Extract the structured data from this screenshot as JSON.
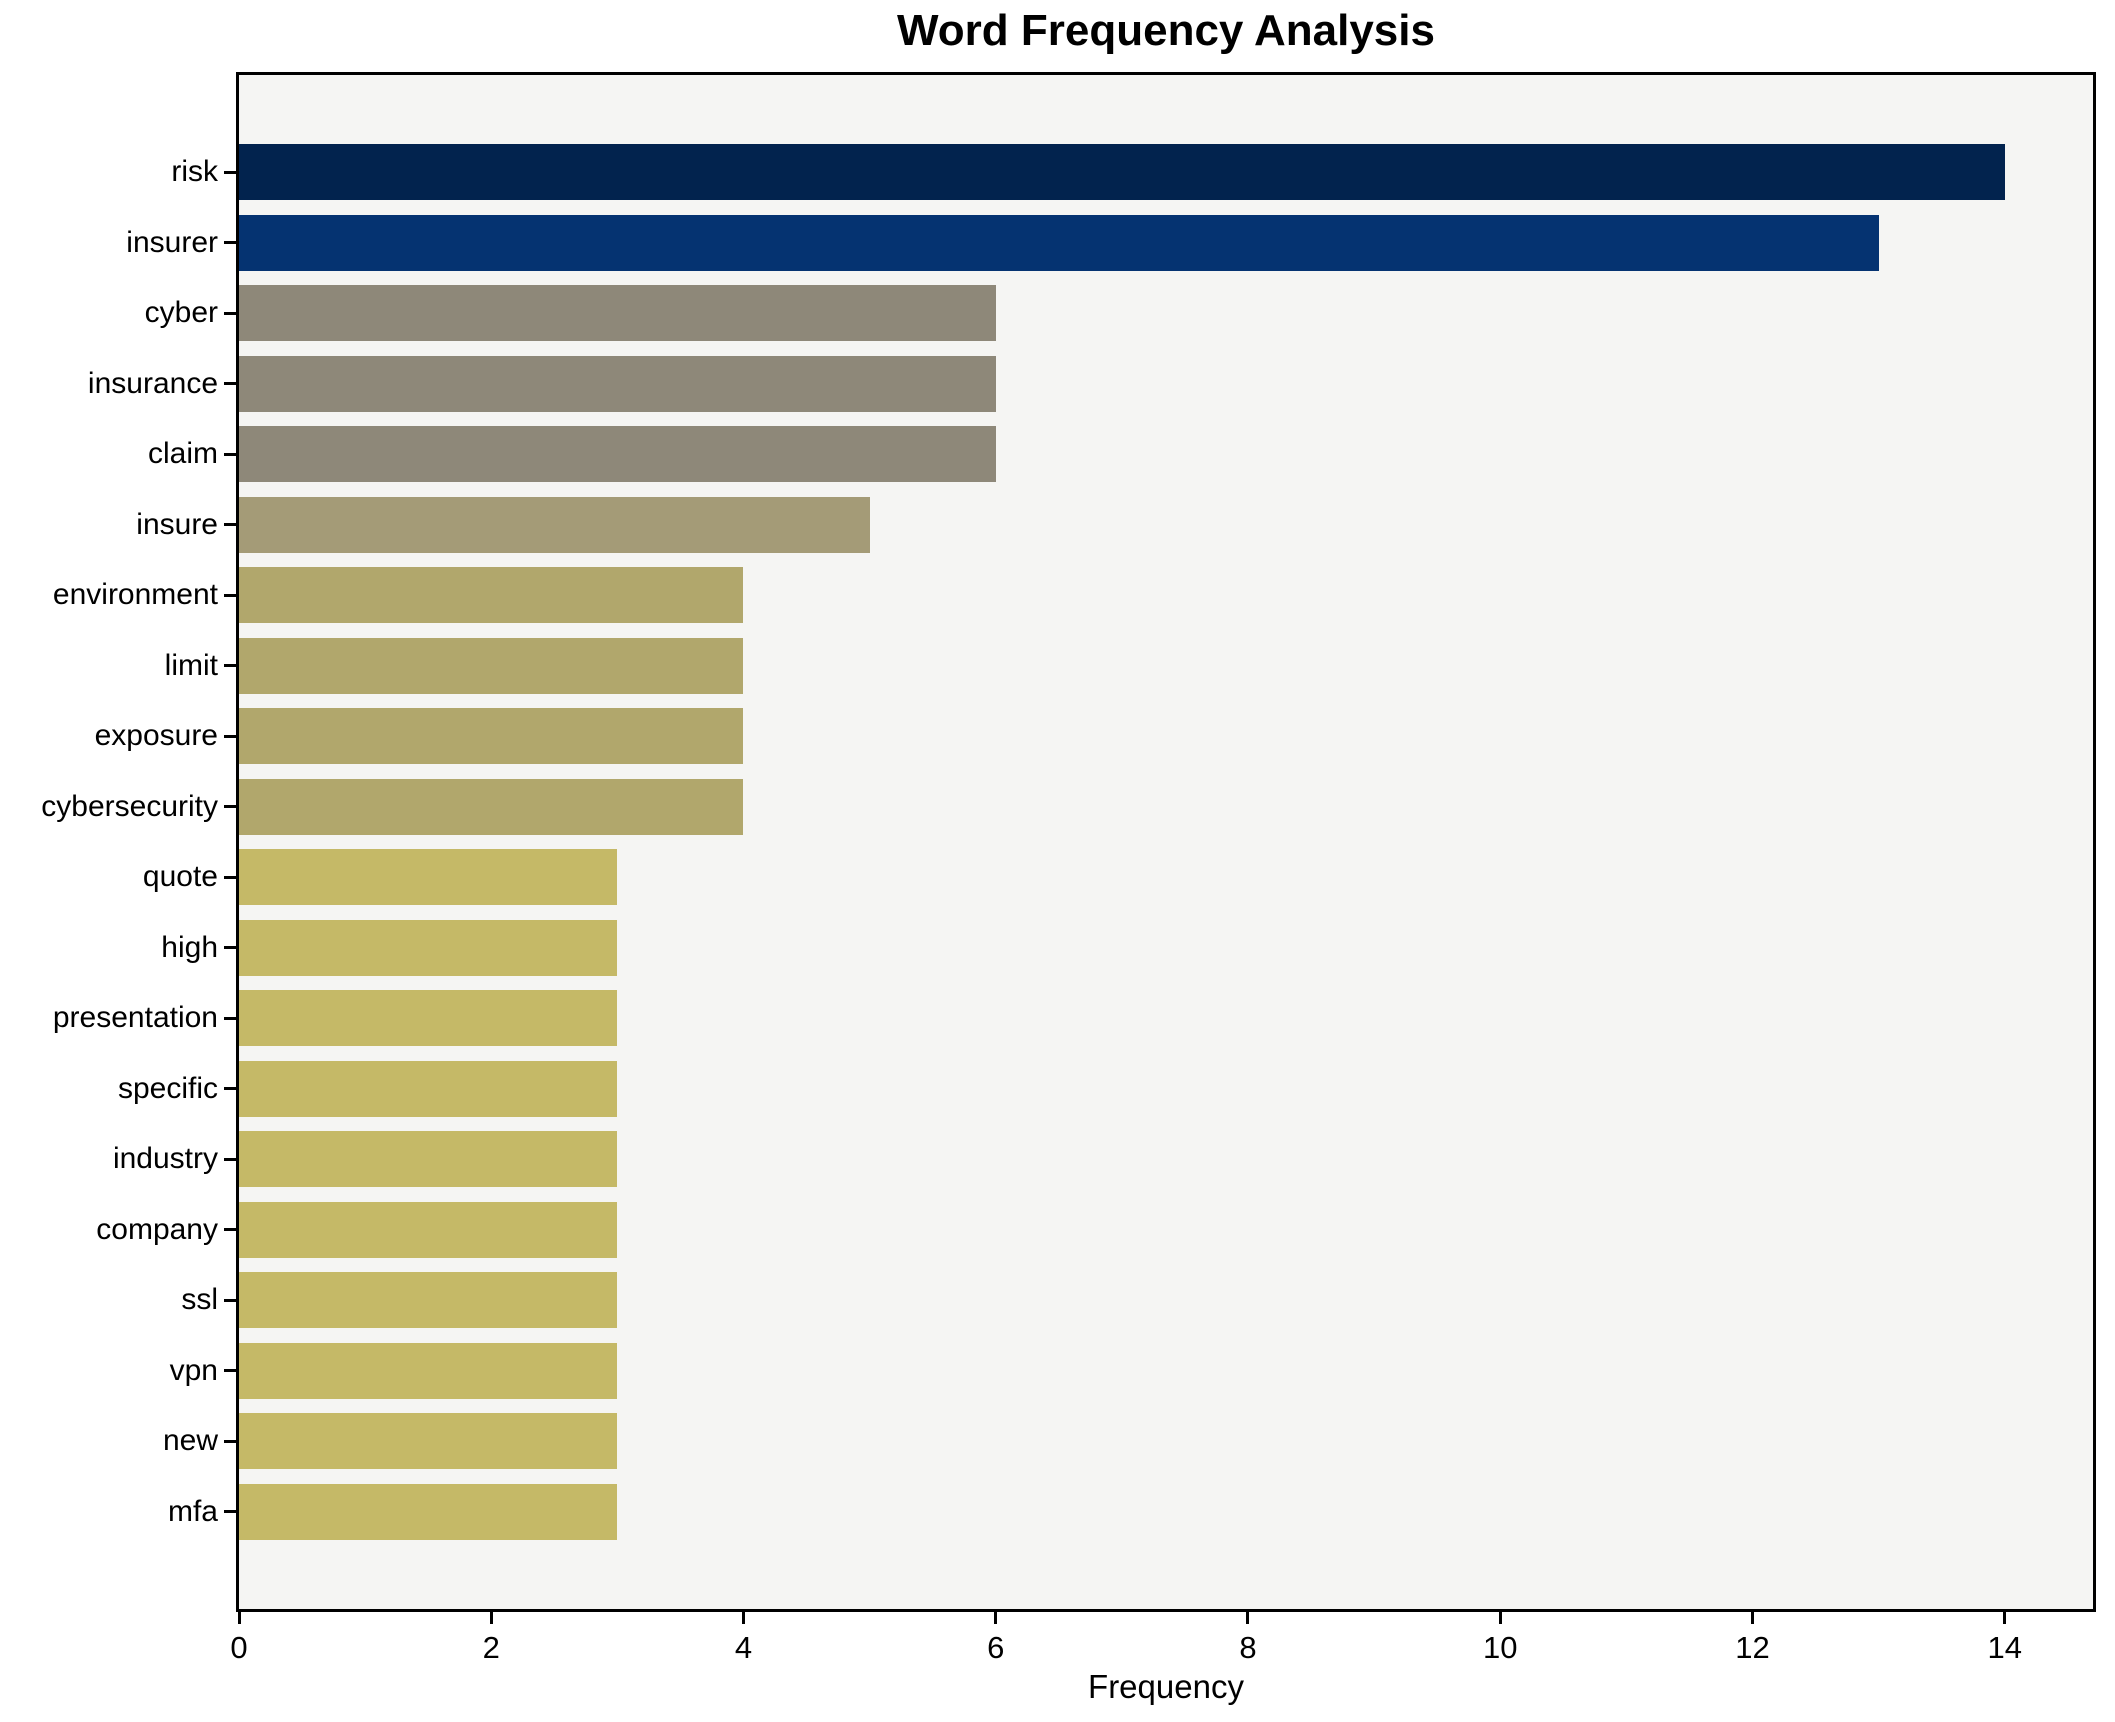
{
  "chart_data": {
    "type": "bar",
    "orientation": "horizontal",
    "title": "Word Frequency Analysis",
    "xlabel": "Frequency",
    "ylabel": "",
    "categories": [
      "risk",
      "insurer",
      "cyber",
      "insurance",
      "claim",
      "insure",
      "environment",
      "limit",
      "exposure",
      "cybersecurity",
      "quote",
      "high",
      "presentation",
      "specific",
      "industry",
      "company",
      "ssl",
      "vpn",
      "new",
      "mfa"
    ],
    "values": [
      14,
      13,
      6,
      6,
      6,
      5,
      4,
      4,
      4,
      4,
      3,
      3,
      3,
      3,
      3,
      3,
      3,
      3,
      3,
      3
    ],
    "bar_colors": [
      "#02234e",
      "#053371",
      "#8e8879",
      "#8e8879",
      "#8e8879",
      "#a49b77",
      "#b1a76c",
      "#b1a76c",
      "#b1a76c",
      "#b1a76c",
      "#c5b967",
      "#c5b967",
      "#c5b967",
      "#c5b967",
      "#c5b967",
      "#c5b967",
      "#c5b967",
      "#c5b967",
      "#c5b967",
      "#c5b967"
    ],
    "x_ticks": [
      0,
      2,
      4,
      6,
      8,
      10,
      12,
      14
    ],
    "xlim": [
      0,
      14.7
    ],
    "grid": false,
    "legend": null,
    "plot_background": "#f5f5f3",
    "spine_color": "#000000",
    "text_color": "#000000"
  }
}
